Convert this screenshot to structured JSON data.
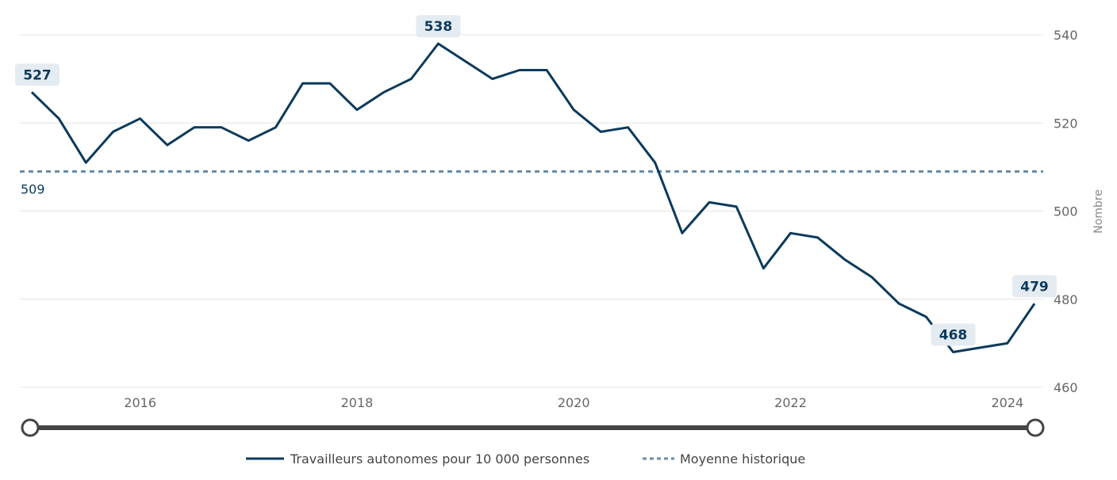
{
  "chart_data": {
    "type": "line",
    "ylabel": "Nombre",
    "xlabel": "",
    "ylim": [
      460,
      540
    ],
    "y_ticks": [
      "460",
      "480",
      "500",
      "520",
      "540"
    ],
    "x_ticks": [
      "2016",
      "2018",
      "2020",
      "2022",
      "2024"
    ],
    "grid": true,
    "legend_placement": "bottom",
    "series": [
      {
        "name": "Travailleurs autonomes pour 10 000 personnes",
        "color": "#0b3a5c",
        "x": [
          "2015 T1",
          "2015 T2",
          "2015 T3",
          "2015 T4",
          "2016 T1",
          "2016 T2",
          "2016 T3",
          "2016 T4",
          "2017 T1",
          "2017 T2",
          "2017 T3",
          "2017 T4",
          "2018 T1",
          "2018 T2",
          "2018 T3",
          "2018 T4",
          "2019 T1",
          "2019 T2",
          "2019 T3",
          "2019 T4",
          "2020 T1",
          "2020 T2",
          "2020 T3",
          "2020 T4",
          "2021 T1",
          "2021 T2",
          "2021 T3",
          "2021 T4",
          "2022 T1",
          "2022 T2",
          "2022 T3",
          "2022 T4",
          "2023 T1",
          "2023 T2",
          "2023 T3",
          "2023 T4",
          "2024 T1",
          "2024 T2"
        ],
        "values": [
          527,
          521,
          511,
          518,
          521,
          515,
          519,
          519,
          516,
          519,
          529,
          529,
          523,
          527,
          530,
          538,
          534,
          530,
          532,
          532,
          523,
          518,
          519,
          511,
          495,
          502,
          501,
          487,
          495,
          494,
          489,
          485,
          479,
          476,
          468,
          469,
          470,
          479
        ]
      },
      {
        "name": "Moyenne historique",
        "color": "#6a8ca8",
        "value": 509
      }
    ],
    "data_labels": [
      {
        "index": 0,
        "text": "527"
      },
      {
        "index": 15,
        "text": "538"
      },
      {
        "index": 34,
        "text": "468"
      },
      {
        "index": 37,
        "text": "479"
      }
    ],
    "average_label": "509"
  }
}
